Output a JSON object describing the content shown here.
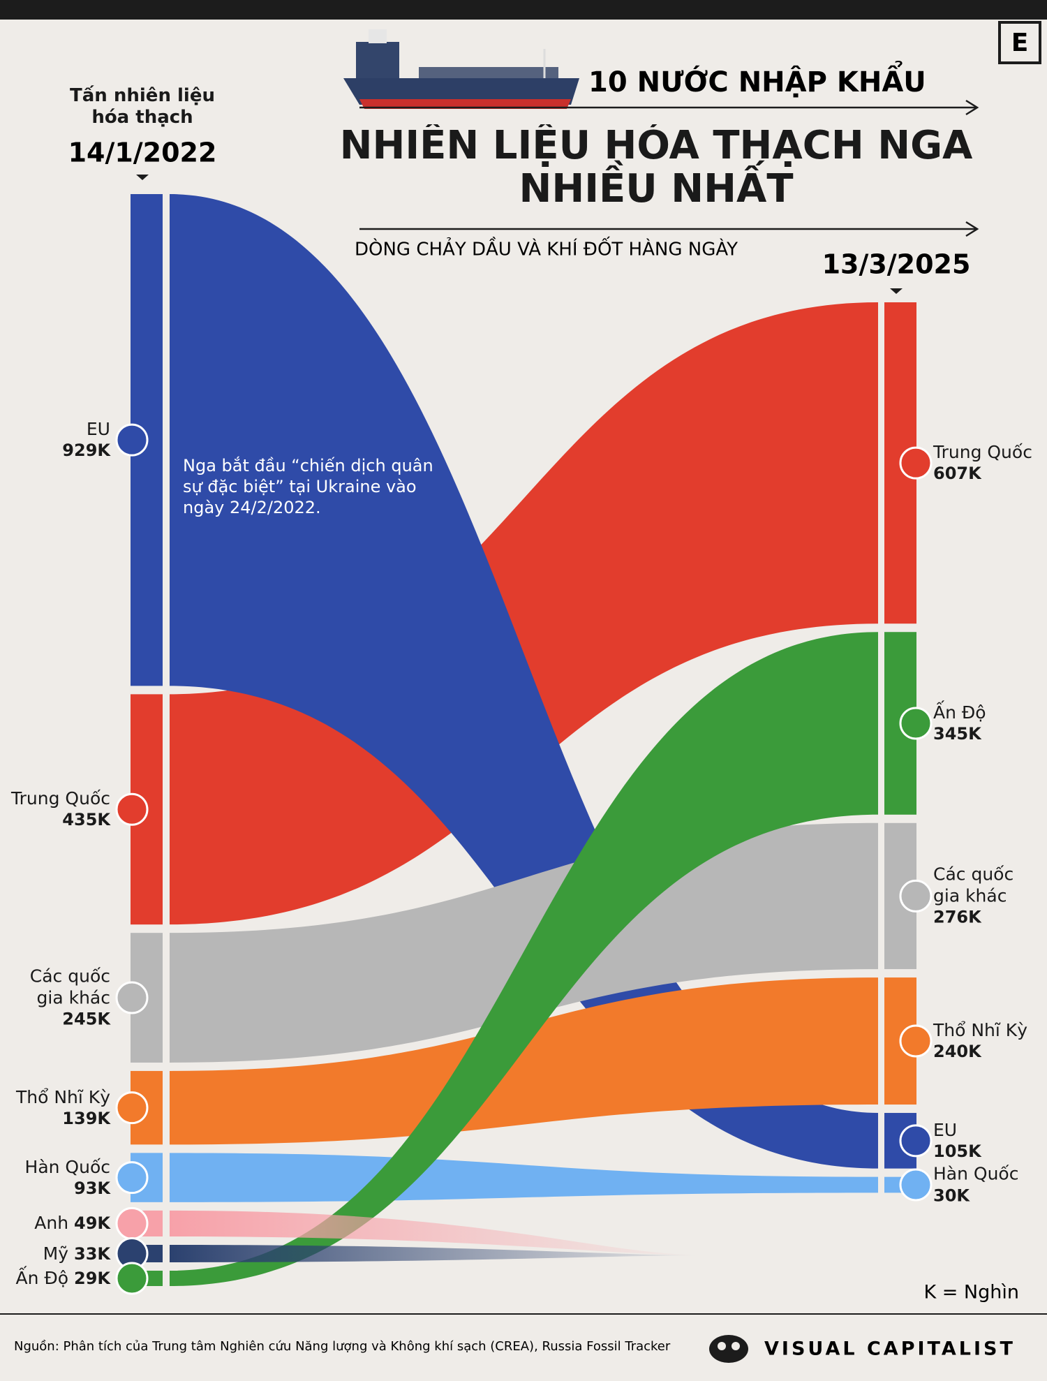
{
  "pretitle": "10 NƯỚC NHẬP KHẨU",
  "logo": "E",
  "source": "Nguồn: Phân tích của Trung tâm Nghiên cứu Năng lượng và Không khí sạch (CREA), Russia Fossil Tracker",
  "brand": "VISUAL CAPITALIST",
  "chart_data": {
    "type": "sankey",
    "title": "NHIÊN LIỆU HÓA THẠCH NGA NHIỀU NHẤT",
    "subtitle": "DÒNG CHẢY DẦU VÀ KHÍ ĐỐT HÀNG NGÀY",
    "unit_label": "Tấn nhiên liệu hóa thạch",
    "categories": [
      "14/1/2022",
      "13/3/2025"
    ],
    "annotation": "Nga bắt đầu “chiến dịch quân sự đặc biệt” tại Ukraine vào ngày 24/2/2022.",
    "note": "K = Nghìn",
    "series": [
      {
        "name": "EU",
        "color": "#2f4ba8",
        "values": [
          929000,
          105000
        ],
        "value_labels": [
          "929K",
          "105K"
        ]
      },
      {
        "name": "Trung Quốc",
        "color": "#e23d2d",
        "values": [
          435000,
          607000
        ],
        "value_labels": [
          "435K",
          "607K"
        ]
      },
      {
        "name": "Các quốc gia khác",
        "color": "#b7b7b7",
        "values": [
          245000,
          276000
        ],
        "value_labels": [
          "245K",
          "276K"
        ]
      },
      {
        "name": "Thổ Nhĩ Kỳ",
        "color": "#f27a2b",
        "values": [
          139000,
          240000
        ],
        "value_labels": [
          "139K",
          "240K"
        ]
      },
      {
        "name": "Hàn Quốc",
        "color": "#70b1f2",
        "values": [
          93000,
          30000
        ],
        "value_labels": [
          "93K",
          "30K"
        ]
      },
      {
        "name": "Anh",
        "color": "#f7a1a9",
        "values": [
          49000,
          null
        ],
        "value_labels": [
          "49K",
          null
        ]
      },
      {
        "name": "Mỹ",
        "color": "#2b416f",
        "values": [
          33000,
          null
        ],
        "value_labels": [
          "33K",
          null
        ]
      },
      {
        "name": "Ấn Độ",
        "color": "#3b9b3a",
        "values": [
          29000,
          345000
        ],
        "value_labels": [
          "29K",
          "345K"
        ]
      }
    ]
  }
}
